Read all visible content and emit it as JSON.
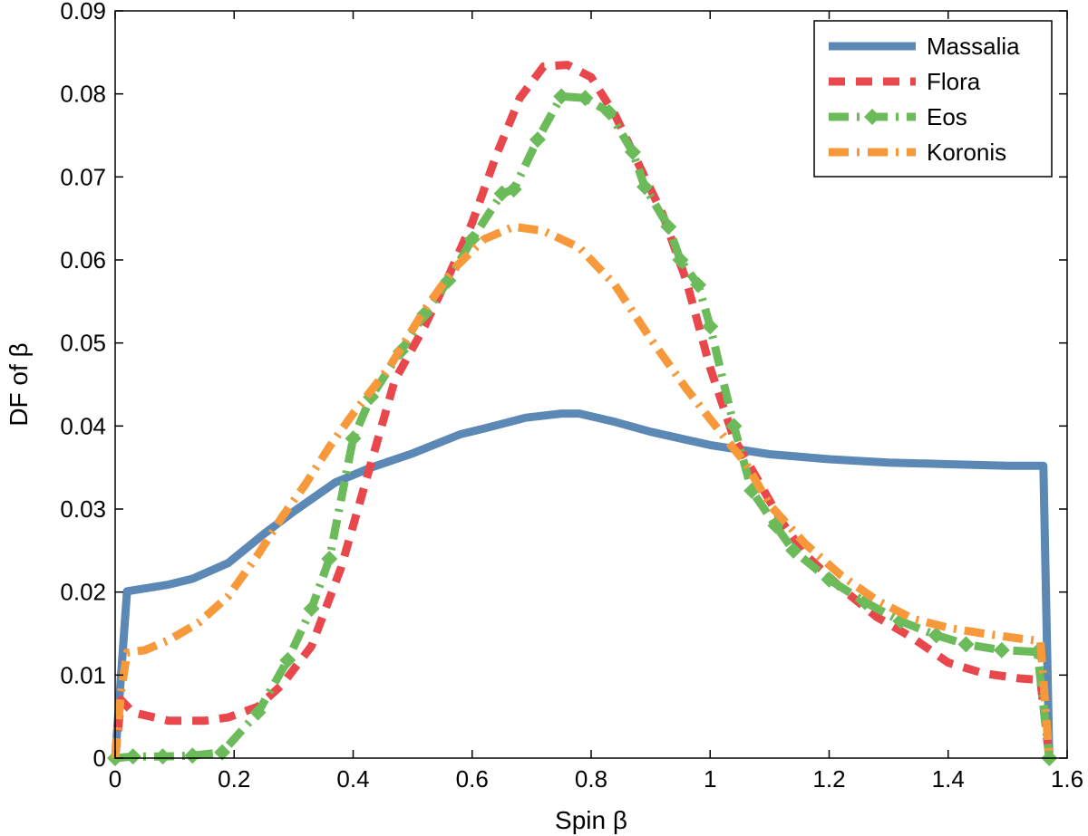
{
  "chart_data": {
    "type": "line",
    "title": "",
    "xlabel": "Spin β",
    "ylabel": "DF of β",
    "xlim": [
      0,
      1.6
    ],
    "ylim": [
      0,
      0.09
    ],
    "xticks": [
      0,
      0.2,
      0.4,
      0.6,
      0.8,
      1.0,
      1.2,
      1.4,
      1.6
    ],
    "xtick_labels": [
      "0",
      "0.2",
      "0.4",
      "0.6",
      "0.8",
      "1",
      "1.2",
      "1.4",
      "1.6"
    ],
    "yticks": [
      0,
      0.01,
      0.02,
      0.03,
      0.04,
      0.05,
      0.06,
      0.07,
      0.08,
      0.09
    ],
    "ytick_labels": [
      "0",
      "0.01",
      "0.02",
      "0.03",
      "0.04",
      "0.05",
      "0.06",
      "0.07",
      "0.08",
      "0.09"
    ],
    "grid": false,
    "legend_position": "top-right",
    "series": [
      {
        "name": "Massalia",
        "color": "#5b88b4",
        "style": "solid",
        "points": [
          [
            0,
            0
          ],
          [
            0.02,
            0.0201
          ],
          [
            0.09,
            0.0209
          ],
          [
            0.13,
            0.0216
          ],
          [
            0.19,
            0.0235
          ],
          [
            0.25,
            0.027
          ],
          [
            0.3,
            0.0297
          ],
          [
            0.37,
            0.0332
          ],
          [
            0.43,
            0.035
          ],
          [
            0.5,
            0.0367
          ],
          [
            0.58,
            0.039
          ],
          [
            0.62,
            0.0397
          ],
          [
            0.69,
            0.041
          ],
          [
            0.75,
            0.0415
          ],
          [
            0.78,
            0.0415
          ],
          [
            0.84,
            0.0405
          ],
          [
            0.9,
            0.0393
          ],
          [
            1.0,
            0.0377
          ],
          [
            1.1,
            0.0366
          ],
          [
            1.2,
            0.036
          ],
          [
            1.3,
            0.0356
          ],
          [
            1.4,
            0.0354
          ],
          [
            1.5,
            0.0352
          ],
          [
            1.56,
            0.0352
          ],
          [
            1.57,
            0.0
          ]
        ]
      },
      {
        "name": "Flora",
        "color": "#e8474c",
        "style": "dashed",
        "points": [
          [
            0,
            0
          ],
          [
            0.01,
            0.007
          ],
          [
            0.03,
            0.0055
          ],
          [
            0.09,
            0.0045
          ],
          [
            0.15,
            0.0045
          ],
          [
            0.19,
            0.0049
          ],
          [
            0.24,
            0.0062
          ],
          [
            0.28,
            0.0088
          ],
          [
            0.33,
            0.0135
          ],
          [
            0.38,
            0.023
          ],
          [
            0.42,
            0.033
          ],
          [
            0.47,
            0.0455
          ],
          [
            0.52,
            0.052
          ],
          [
            0.56,
            0.058
          ],
          [
            0.6,
            0.0645
          ],
          [
            0.64,
            0.0725
          ],
          [
            0.68,
            0.0795
          ],
          [
            0.72,
            0.0833
          ],
          [
            0.76,
            0.0835
          ],
          [
            0.8,
            0.082
          ],
          [
            0.84,
            0.0775
          ],
          [
            0.88,
            0.0715
          ],
          [
            0.92,
            0.0655
          ],
          [
            0.96,
            0.0575
          ],
          [
            1.0,
            0.047
          ],
          [
            1.04,
            0.0385
          ],
          [
            1.08,
            0.0335
          ],
          [
            1.12,
            0.0285
          ],
          [
            1.16,
            0.0245
          ],
          [
            1.22,
            0.0205
          ],
          [
            1.28,
            0.017
          ],
          [
            1.34,
            0.0145
          ],
          [
            1.4,
            0.0115
          ],
          [
            1.46,
            0.0102
          ],
          [
            1.52,
            0.0096
          ],
          [
            1.555,
            0.0094
          ],
          [
            1.57,
            0
          ]
        ]
      },
      {
        "name": "Eos",
        "color": "#6cbb5a",
        "style": "dash-dot",
        "markers": "diamond",
        "points": [
          [
            0,
            0
          ],
          [
            0.03,
            0.0002
          ],
          [
            0.08,
            0.0002
          ],
          [
            0.13,
            0.0003
          ],
          [
            0.18,
            0.0007
          ],
          [
            0.24,
            0.0055
          ],
          [
            0.29,
            0.0118
          ],
          [
            0.33,
            0.018
          ],
          [
            0.36,
            0.024
          ],
          [
            0.4,
            0.0385
          ],
          [
            0.43,
            0.0435
          ],
          [
            0.48,
            0.049
          ],
          [
            0.52,
            0.0535
          ],
          [
            0.56,
            0.0575
          ],
          [
            0.6,
            0.0625
          ],
          [
            0.65,
            0.068
          ],
          [
            0.67,
            0.0685
          ],
          [
            0.71,
            0.0745
          ],
          [
            0.75,
            0.0797
          ],
          [
            0.79,
            0.0795
          ],
          [
            0.83,
            0.0778
          ],
          [
            0.87,
            0.073
          ],
          [
            0.89,
            0.0688
          ],
          [
            0.93,
            0.064
          ],
          [
            0.95,
            0.06
          ],
          [
            0.98,
            0.057
          ],
          [
            1.0,
            0.052
          ],
          [
            1.04,
            0.04
          ],
          [
            1.07,
            0.0322
          ],
          [
            1.11,
            0.028
          ],
          [
            1.14,
            0.025
          ],
          [
            1.2,
            0.0215
          ],
          [
            1.26,
            0.0188
          ],
          [
            1.32,
            0.0165
          ],
          [
            1.38,
            0.0148
          ],
          [
            1.43,
            0.0137
          ],
          [
            1.49,
            0.013
          ],
          [
            1.55,
            0.0128
          ],
          [
            1.57,
            0
          ]
        ]
      },
      {
        "name": "Koronis",
        "color": "#f7993a",
        "style": "dash-dot",
        "points": [
          [
            0,
            0
          ],
          [
            0.01,
            0.008
          ],
          [
            0.02,
            0.0127
          ],
          [
            0.05,
            0.013
          ],
          [
            0.09,
            0.0142
          ],
          [
            0.14,
            0.0163
          ],
          [
            0.19,
            0.0195
          ],
          [
            0.24,
            0.0245
          ],
          [
            0.28,
            0.029
          ],
          [
            0.32,
            0.033
          ],
          [
            0.36,
            0.0375
          ],
          [
            0.4,
            0.0415
          ],
          [
            0.46,
            0.047
          ],
          [
            0.52,
            0.054
          ],
          [
            0.57,
            0.059
          ],
          [
            0.62,
            0.0625
          ],
          [
            0.67,
            0.064
          ],
          [
            0.72,
            0.0635
          ],
          [
            0.78,
            0.0615
          ],
          [
            0.84,
            0.057
          ],
          [
            0.9,
            0.0505
          ],
          [
            0.96,
            0.0445
          ],
          [
            1.02,
            0.039
          ],
          [
            1.06,
            0.0355
          ],
          [
            1.1,
            0.0305
          ],
          [
            1.16,
            0.0258
          ],
          [
            1.22,
            0.022
          ],
          [
            1.28,
            0.019
          ],
          [
            1.34,
            0.0168
          ],
          [
            1.4,
            0.0157
          ],
          [
            1.46,
            0.015
          ],
          [
            1.52,
            0.0144
          ],
          [
            1.555,
            0.0141
          ],
          [
            1.57,
            0
          ]
        ]
      }
    ]
  }
}
